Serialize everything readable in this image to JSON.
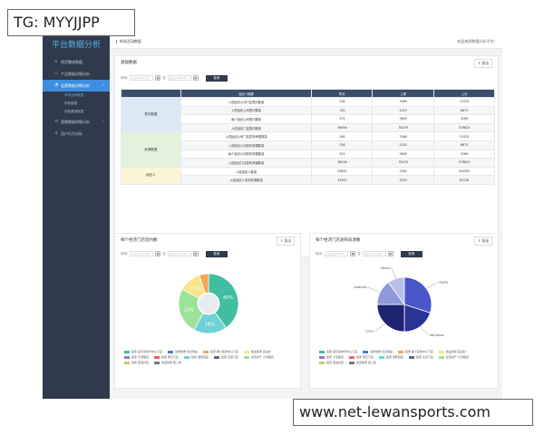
{
  "watermark_top": "TG: MYYJJPP",
  "watermark_bottom": "www.net-lewansports.com",
  "sidebar": {
    "brand": "平台数据分析",
    "items": [
      {
        "icon": "home-icon",
        "label": "首页整体数据"
      },
      {
        "icon": "tag-icon",
        "label": "产品数据详情分析"
      },
      {
        "icon": "chart-icon",
        "label": "运营数据详情分析",
        "active": true
      },
      {
        "icon": "list-icon",
        "label": "营销数据明细分析"
      },
      {
        "icon": "user-icon",
        "label": "用户行为分析"
      }
    ],
    "subitems": [
      {
        "label": "市场活动数据",
        "active": true
      },
      {
        "label": "获客数据"
      },
      {
        "label": "获客渠道数据"
      }
    ]
  },
  "topbar": {
    "breadcrumb": "市场活动数据",
    "welcome": "欢迎来到数据分析平台!"
  },
  "basic": {
    "title": "基础数据",
    "export": "导出",
    "filter_label": "时间:",
    "start_placeholder": "yyyy-mm-dd",
    "end_placeholder": "yyyy-mm-dd",
    "to": "至",
    "query": "查询",
    "headers": [
      "",
      "经纪人概要",
      "昨天",
      "上周",
      "上月"
    ],
    "groups": [
      {
        "name": "签约数据",
        "color": "blue",
        "rows": [
          [
            "入驻经纪公司门店签约数量",
            "248",
            "3569",
            "15325"
          ],
          [
            "入驻经纪公司签约数量",
            "130",
            "4215",
            "6873"
          ],
          [
            "每个经纪公司签约数量",
            "375",
            "3695",
            "3269"
          ],
          [
            "入驻经纪门店签约数量",
            "36956",
            "35479",
            "579623"
          ]
        ]
      },
      {
        "name": "房源数据",
        "color": "green",
        "rows": [
          [
            "入驻经纪公司门店发布房源数量",
            "248",
            "3569",
            "15325"
          ],
          [
            "入驻经纪公司发布房源数量",
            "136",
            "4255",
            "6873"
          ],
          [
            "每个经纪公司发布房源数量",
            "325",
            "3695",
            "3269"
          ],
          [
            "入驻经纪门店发布房源数量",
            "36536",
            "35479",
            "579623"
          ]
        ]
      },
      {
        "name": "经纪人",
        "color": "yellow",
        "rows": [
          [
            "入驻经纪人数量",
            "33655",
            "3302",
            "554303"
          ],
          [
            "入驻经纪人发布房源数量",
            "33955",
            "3255",
            "63128"
          ]
        ]
      }
    ]
  },
  "chart1": {
    "title": "每个经济门店签约数",
    "export": "导出",
    "filter_label": "时间:",
    "start_placeholder": "yyyy-mm-dd",
    "end_placeholder": "yyyy-mm-dd",
    "to": "至",
    "query": "查询",
    "colors": {
      "teal": "#3fbfa0",
      "cyan": "#6fd1d6",
      "green": "#9ee29a",
      "yellow": "#f7e58a",
      "orange": "#f4a55a"
    },
    "legend": [
      {
        "label": "链家·昌平区体育中心门店",
        "color": "#3fbfa0"
      },
      {
        "label": "爱屋吉屋·北京南站",
        "color": "#4a7bd0"
      },
      {
        "label": "链家·顺义区新中心门店",
        "color": "#f4a55a"
      },
      {
        "label": "我爱我家·亚运村",
        "color": "#f7e58a"
      },
      {
        "label": "链家·大望路店",
        "color": "#8e7cc3"
      },
      {
        "label": "链家·黄石门店",
        "color": "#e06377"
      },
      {
        "label": "链家·潘家园店",
        "color": "#6fd1d6"
      },
      {
        "label": "链家·东直门店",
        "color": "#5b6b80"
      },
      {
        "label": "麦田房产·大望路店",
        "color": "#9ee29a"
      },
      {
        "label": "链家·亚运村店",
        "color": "#c0d06a"
      },
      {
        "label": "我爱我家·西二旗",
        "color": "#777777"
      }
    ]
  },
  "chart2": {
    "title": "每个经济门店发布房源数",
    "export": "导出",
    "filter_label": "时间:",
    "start_placeholder": "yyyy-mm-dd",
    "end_placeholder": "yyyy-mm-dd",
    "to": "至",
    "query": "查询",
    "legend": [
      {
        "label": "链家·昌平区体育中心门店",
        "color": "#3fbfa0"
      },
      {
        "label": "爱屋吉屋·北京南站",
        "color": "#4a7bd0"
      },
      {
        "label": "链家·顺义区新中心门店",
        "color": "#f4a55a"
      },
      {
        "label": "我爱我家·亚运村",
        "color": "#f7e58a"
      },
      {
        "label": "链家·大望路店",
        "color": "#8e7cc3"
      },
      {
        "label": "链家·黄石门店",
        "color": "#e06377"
      },
      {
        "label": "链家·潘家园店",
        "color": "#6fd1d6"
      },
      {
        "label": "链家·东直门店",
        "color": "#5b6b80"
      },
      {
        "label": "麦田房产·大望路店",
        "color": "#9ee29a"
      },
      {
        "label": "链家·亚运村店",
        "color": "#c0d06a"
      },
      {
        "label": "我爱我家·西二旗",
        "color": "#777777"
      }
    ]
  },
  "chart_data": [
    {
      "type": "pie",
      "title": "每个经济门店签约数",
      "donut": true,
      "slices": [
        {
          "label": "40%",
          "value": 40,
          "color": "#3fbfa0"
        },
        {
          "label": "18%",
          "value": 18,
          "color": "#6fd1d6"
        },
        {
          "label": "25%",
          "value": 25,
          "color": "#9ee29a"
        },
        {
          "label": "12%",
          "value": 12,
          "color": "#f7e58a"
        },
        {
          "label": "",
          "value": 5,
          "color": "#f4a55a"
        }
      ]
    },
    {
      "type": "pie",
      "title": "每个经济门店发布房源数",
      "slices": [
        {
          "label": "Apple",
          "value": 30,
          "color": "#4a55c7"
        },
        {
          "label": "Windows",
          "value": 20,
          "color": "#2a3494"
        },
        {
          "label": "Linux",
          "value": 25,
          "color": "#1c2470"
        },
        {
          "label": "Android",
          "value": 15,
          "color": "#8f97dd"
        },
        {
          "label": "Others",
          "value": 10,
          "color": "#b9bfe8"
        }
      ]
    }
  ]
}
